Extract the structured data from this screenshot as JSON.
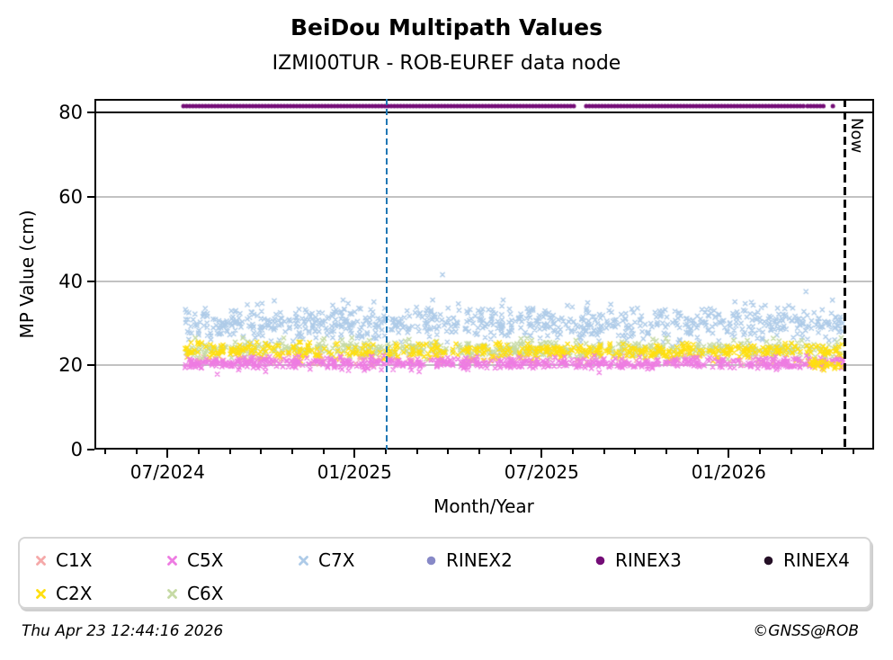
{
  "title": "BeiDou Multipath Values",
  "subtitle": "IZMI00TUR - ROB-EUREF data node",
  "footer": {
    "timestamp": "Thu Apr 23 12:44:16 2026",
    "credit": "©GNSS@ROB"
  },
  "chart_data": {
    "type": "scatter",
    "title": "BeiDou Multipath Values",
    "subtitle": "IZMI00TUR - ROB-EUREF data node",
    "grid": "horizontal-light",
    "y_axis": {
      "label": "MP Value (cm)",
      "ticks": [
        0,
        20,
        40,
        60,
        80
      ],
      "lim": [
        0,
        81.5
      ],
      "solid_line_cm": 80
    },
    "x_axis": {
      "label": "Month/Year",
      "month0": "05/2024",
      "months_shown": 25,
      "major_ticks": [
        {
          "month": 2,
          "label": "07/2024"
        },
        {
          "month": 8,
          "label": "01/2025"
        },
        {
          "month": 14,
          "label": "07/2025"
        },
        {
          "month": 20,
          "label": "01/2026"
        }
      ]
    },
    "data_x_range_month": [
      2.54,
      23.66
    ],
    "series": [
      {
        "name": "C1X",
        "color": "#f5a9a9",
        "marker": "x",
        "band_mean_cm": 21.5,
        "band_std_cm": 0.7,
        "band_range_cm": [
          20.0,
          23.0
        ],
        "points": 150
      },
      {
        "name": "C7X",
        "color": "#aecbe8",
        "marker": "x",
        "band_mean_cm": 30.0,
        "band_std_cm": 2.0,
        "band_range_cm": [
          24.5,
          35.5
        ],
        "points": 850
      },
      {
        "name": "C6X",
        "color": "#c6daa5",
        "marker": "x",
        "band_mean_cm": 23.8,
        "band_std_cm": 1.0,
        "band_range_cm": [
          21.5,
          26.5
        ],
        "points": 560
      },
      {
        "name": "C2X",
        "color": "#ffdf10",
        "marker": "x",
        "band_mean_cm": 23.4,
        "band_std_cm": 0.9,
        "band_range_cm": [
          21.0,
          25.5
        ],
        "points": 520
      },
      {
        "name": "C5X",
        "color": "#ee7ce2",
        "marker": "x",
        "band_mean_cm": 20.5,
        "band_std_cm": 0.7,
        "band_range_cm": [
          18.5,
          22.3
        ],
        "points": 640
      }
    ],
    "draw_order": [
      "C1X",
      "C7X",
      "C6X",
      "C2X",
      "C5X"
    ],
    "outliers": [
      {
        "series": "C7X",
        "x_frac": 0.392,
        "value_cm": 41.5
      },
      {
        "series": "C7X",
        "x_frac": 0.944,
        "value_cm": 37.5
      },
      {
        "series": "C5X",
        "x_frac": 0.05,
        "value_cm": 17.9
      },
      {
        "series": "C5X",
        "x_frac": 0.63,
        "value_cm": 18.3
      }
    ],
    "end_cluster": {
      "series": "C2X",
      "x_frac_range": [
        0.95,
        1.0
      ],
      "mean_cm": 20.2,
      "std_cm": 0.6,
      "points": 30
    },
    "rinex_bar": {
      "series": "RINEX3",
      "color": "#740d77",
      "value_cm": 81.5,
      "segments_month": [
        [
          2.51,
          15.09
        ],
        [
          15.43,
          22.41
        ],
        [
          22.53,
          23.13
        ]
      ],
      "single_dots_month": [
        23.34
      ]
    },
    "reference_lines": [
      {
        "name": "update-line",
        "style": "dashed",
        "color": "#1f77b4",
        "month": 9.03,
        "label": ""
      },
      {
        "name": "now-line",
        "style": "dashed",
        "color": "#000000",
        "month": 23.71,
        "label": "Now"
      }
    ]
  },
  "legend": {
    "entries": [
      {
        "label": "C1X",
        "marker": "x",
        "color": "#f5a9a9",
        "row": 0,
        "col": 0
      },
      {
        "label": "C5X",
        "marker": "x",
        "color": "#ee7ce2",
        "row": 0,
        "col": 1
      },
      {
        "label": "C7X",
        "marker": "x",
        "color": "#aecbe8",
        "row": 0,
        "col": 2
      },
      {
        "label": "RINEX2",
        "marker": "dot",
        "color": "#8789c7",
        "row": 0,
        "col": 3
      },
      {
        "label": "RINEX3",
        "marker": "dot",
        "color": "#740d77",
        "row": 0,
        "col": 4
      },
      {
        "label": "RINEX4",
        "marker": "dot",
        "color": "#251026",
        "row": 0,
        "col": 5
      },
      {
        "label": "C2X",
        "marker": "x",
        "color": "#ffdf10",
        "row": 1,
        "col": 0
      },
      {
        "label": "C6X",
        "marker": "x",
        "color": "#c6daa5",
        "row": 1,
        "col": 1
      }
    ]
  }
}
